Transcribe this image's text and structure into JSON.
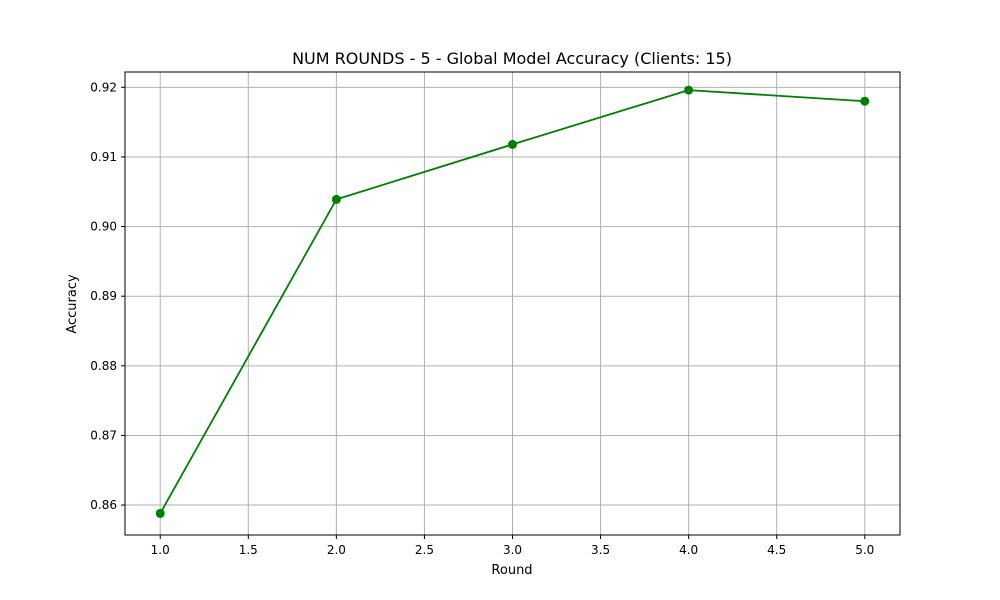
{
  "chart_data": {
    "type": "line",
    "title": "NUM ROUNDS - 5 - Global Model Accuracy (Clients: 15)",
    "xlabel": "Round",
    "ylabel": "Accuracy",
    "x": [
      1.0,
      2.0,
      3.0,
      4.0,
      5.0
    ],
    "series": [
      {
        "values": [
          0.8588,
          0.9039,
          0.9118,
          0.9196,
          0.918
        ],
        "color": "#008000",
        "marker": "circle"
      }
    ],
    "xlim": [
      0.8,
      5.2
    ],
    "ylim": [
      0.8557,
      0.9222
    ],
    "x_ticks": [
      1.0,
      1.5,
      2.0,
      2.5,
      3.0,
      3.5,
      4.0,
      4.5,
      5.0
    ],
    "x_tick_labels": [
      "1.0",
      "1.5",
      "2.0",
      "2.5",
      "3.0",
      "3.5",
      "4.0",
      "4.5",
      "5.0"
    ],
    "y_ticks": [
      0.86,
      0.87,
      0.88,
      0.89,
      0.9,
      0.91,
      0.92
    ],
    "y_tick_labels": [
      "0.86",
      "0.87",
      "0.88",
      "0.89",
      "0.90",
      "0.91",
      "0.92"
    ],
    "grid": true,
    "grid_color": "#b0b0b0"
  }
}
